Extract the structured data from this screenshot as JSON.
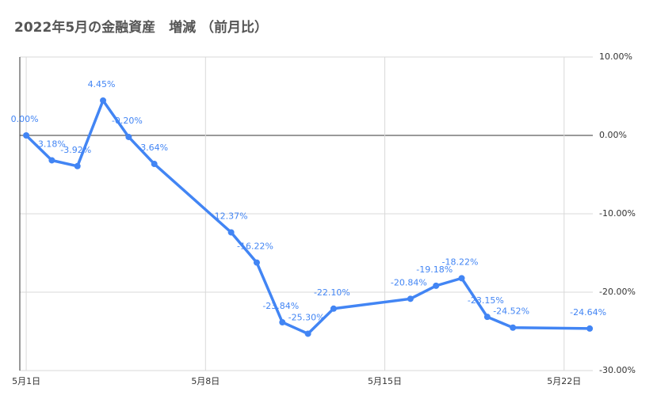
{
  "chart_data": {
    "type": "line",
    "title": "2022年5月の金融資産　増減 （前月比）",
    "x": [
      1,
      2,
      3,
      4,
      5,
      6,
      9,
      10,
      11,
      12,
      13,
      16,
      17,
      18,
      19,
      20,
      23
    ],
    "series": [
      {
        "name": "増減",
        "color": "#4285f4",
        "values": [
          0.0,
          -3.18,
          -3.92,
          4.45,
          -0.2,
          -3.64,
          -12.37,
          -16.22,
          -23.84,
          -25.3,
          -22.1,
          -20.84,
          -19.18,
          -18.22,
          -23.15,
          -24.52,
          -24.64
        ],
        "value_labels": [
          "0.00%",
          "-3.18%",
          "-3.92%",
          "4.45%",
          "-0.20%",
          "-3.64%",
          "-12.37%",
          "-16.22%",
          "-23.84%",
          "-25.30%",
          "-22.10%",
          "-20.84%",
          "-19.18%",
          "-18.22%",
          "-23.15%",
          "-24.52%",
          "-24.64%"
        ]
      }
    ],
    "xlim": [
      0.75,
      23.12
    ],
    "xticks": [
      {
        "value": 1,
        "label": "5月1日"
      },
      {
        "value": 8,
        "label": "5月8日"
      },
      {
        "value": 15,
        "label": "5月15日"
      },
      {
        "value": 22,
        "label": "5月22日"
      }
    ],
    "ylim": [
      -30,
      10
    ],
    "yticks": [
      {
        "value": 10,
        "label": "10.00%"
      },
      {
        "value": 0,
        "label": "0.00%"
      },
      {
        "value": -10,
        "label": "-10.00%"
      },
      {
        "value": -20,
        "label": "-20.00%"
      },
      {
        "value": -30,
        "label": "-30.00%"
      }
    ],
    "grid": true
  }
}
